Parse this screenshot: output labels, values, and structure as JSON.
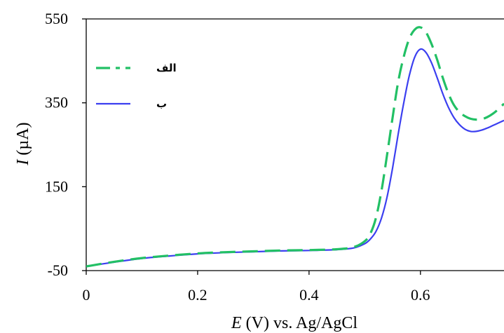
{
  "chart_data": {
    "type": "line",
    "title": "",
    "xlabel": {
      "italic": "E",
      "rest": " (V) vs. Ag/AgCl"
    },
    "ylabel": {
      "italic": "I",
      "rest": " (µA)"
    },
    "xlim": [
      0,
      0.75
    ],
    "ylim": [
      -50,
      550
    ],
    "xticks": [
      0,
      0.2,
      0.4,
      0.6
    ],
    "xtick_labels": [
      "0",
      "0.2",
      "0.4",
      "0.6"
    ],
    "yticks": [
      -50,
      150,
      350,
      550
    ],
    "ytick_labels": [
      "-50",
      "150",
      "350",
      "550"
    ],
    "grid": false,
    "legend_position": "top-left",
    "series": [
      {
        "name": "الف",
        "color": "#22c065",
        "dash": true,
        "x": [
          0,
          0.05,
          0.1,
          0.15,
          0.2,
          0.25,
          0.3,
          0.35,
          0.4,
          0.45,
          0.48,
          0.5,
          0.51,
          0.52,
          0.53,
          0.54,
          0.55,
          0.56,
          0.57,
          0.58,
          0.59,
          0.6,
          0.61,
          0.62,
          0.63,
          0.64,
          0.65,
          0.66,
          0.67,
          0.68,
          0.69,
          0.7,
          0.71,
          0.72,
          0.73,
          0.74,
          0.75
        ],
        "y": [
          -40,
          -29,
          -20,
          -14,
          -9,
          -6,
          -4,
          -2,
          -1,
          1,
          6,
          20,
          38,
          75,
          140,
          225,
          315,
          400,
          460,
          503,
          525,
          530,
          518,
          490,
          453,
          410,
          373,
          345,
          328,
          318,
          312,
          310,
          311,
          316,
          324,
          335,
          348
        ]
      },
      {
        "name": "ب",
        "color": "#3b3ff0",
        "dash": false,
        "x": [
          0,
          0.05,
          0.1,
          0.15,
          0.2,
          0.25,
          0.3,
          0.35,
          0.4,
          0.45,
          0.48,
          0.5,
          0.51,
          0.52,
          0.53,
          0.54,
          0.55,
          0.56,
          0.57,
          0.58,
          0.59,
          0.6,
          0.61,
          0.62,
          0.63,
          0.64,
          0.65,
          0.66,
          0.67,
          0.68,
          0.69,
          0.7,
          0.71,
          0.72,
          0.73,
          0.74,
          0.75
        ],
        "y": [
          -40,
          -30,
          -21,
          -15,
          -10,
          -7,
          -5,
          -3,
          -2,
          0,
          4,
          14,
          25,
          43,
          75,
          125,
          195,
          275,
          350,
          415,
          460,
          478,
          470,
          445,
          410,
          372,
          340,
          315,
          298,
          287,
          282,
          282,
          285,
          290,
          296,
          302,
          308
        ]
      }
    ]
  }
}
